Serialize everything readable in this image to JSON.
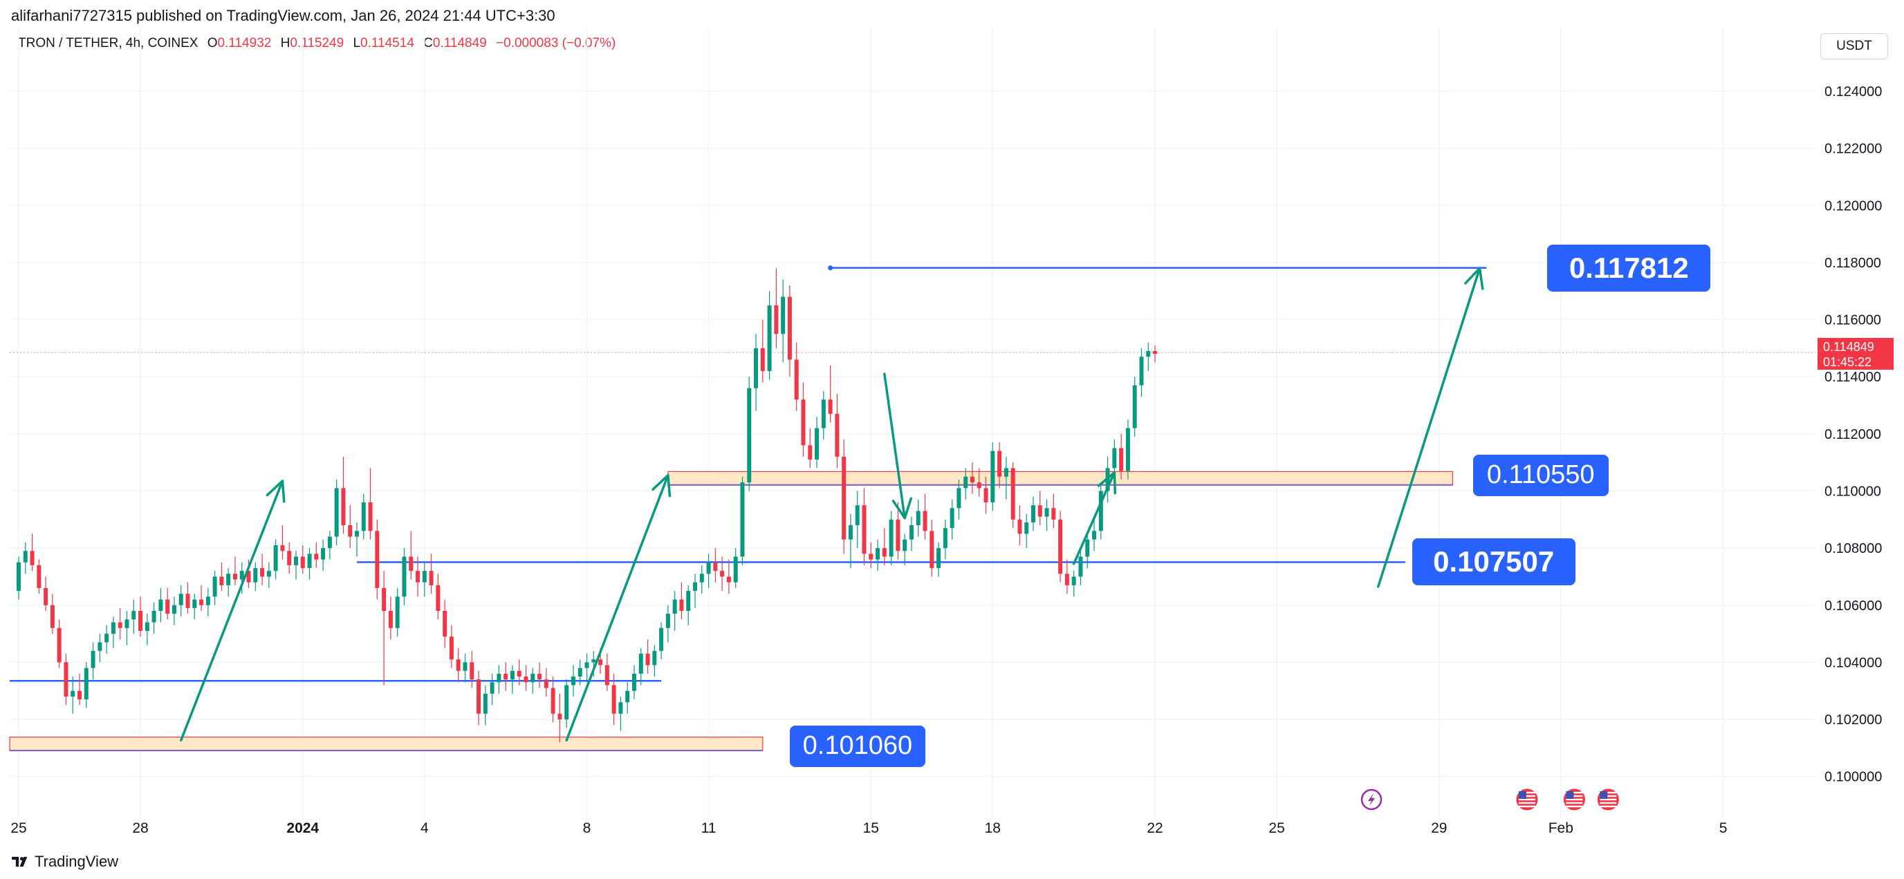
{
  "header": {
    "publisher_line": "alifarhani7727315 published on TradingView.com, Jan 26, 2024 21:44 UTC+3:30",
    "symbol": "TRON / TETHER, 4h, COINEX",
    "ohlc": {
      "o_label": "O",
      "o": "0.114932",
      "h_label": "H",
      "h": "0.115249",
      "l_label": "L",
      "l": "0.114514",
      "c_label": "C",
      "c": "0.114849",
      "change": "−0.000083 (−0.07%)"
    },
    "currency": "USDT"
  },
  "footer": {
    "brand": "TradingView"
  },
  "colors": {
    "up": "#089981",
    "down": "#f23645",
    "line": "#2962ff",
    "zone_fill": "#ffe0b2",
    "zone_border": "#f23645",
    "arrow": "#089981",
    "callout": "#2962ff"
  },
  "current_price": {
    "value": "0.114849",
    "countdown": "01:45:22"
  },
  "callouts": [
    {
      "label": "0.117812",
      "bold": true
    },
    {
      "label": "0.110550",
      "bold": false
    },
    {
      "label": "0.107507",
      "bold": true
    },
    {
      "label": "0.101060",
      "bold": false
    }
  ],
  "chart_data": {
    "type": "candlestick",
    "interval": "4h",
    "y_axis": {
      "range": [
        0.099,
        0.1255
      ],
      "ticks": [
        "0.100000",
        "0.102000",
        "0.104000",
        "0.106000",
        "0.108000",
        "0.110000",
        "0.112000",
        "0.114000",
        "0.116000",
        "0.118000",
        "0.120000",
        "0.122000",
        "0.124000"
      ]
    },
    "x_axis": {
      "ticks": [
        {
          "label": "25",
          "bar": 0
        },
        {
          "label": "28",
          "bar": 18
        },
        {
          "label": "2024",
          "bar": 42,
          "bold": true
        },
        {
          "label": "4",
          "bar": 60
        },
        {
          "label": "8",
          "bar": 84
        },
        {
          "label": "11",
          "bar": 102
        },
        {
          "label": "15",
          "bar": 126
        },
        {
          "label": "18",
          "bar": 144
        },
        {
          "label": "22",
          "bar": 168
        },
        {
          "label": "25",
          "bar": 186
        },
        {
          "label": "29",
          "bar": 210
        },
        {
          "label": "Feb",
          "bar": 228
        },
        {
          "label": "5",
          "bar": 252
        }
      ]
    },
    "candles": [
      [
        0.1065,
        0.1077,
        0.1062,
        0.1075
      ],
      [
        0.1075,
        0.1082,
        0.1071,
        0.1079
      ],
      [
        0.1079,
        0.1085,
        0.1072,
        0.1074
      ],
      [
        0.1074,
        0.1076,
        0.1064,
        0.1066
      ],
      [
        0.1066,
        0.107,
        0.1058,
        0.106
      ],
      [
        0.106,
        0.1064,
        0.105,
        0.1052
      ],
      [
        0.1052,
        0.1055,
        0.1038,
        0.104
      ],
      [
        0.104,
        0.1043,
        0.1025,
        0.1028
      ],
      [
        0.1028,
        0.1035,
        0.1022,
        0.103
      ],
      [
        0.103,
        0.1036,
        0.1025,
        0.1027
      ],
      [
        0.1027,
        0.104,
        0.1024,
        0.1038
      ],
      [
        0.1038,
        0.1047,
        0.1034,
        0.1044
      ],
      [
        0.1044,
        0.105,
        0.104,
        0.1047
      ],
      [
        0.1047,
        0.1053,
        0.1043,
        0.105
      ],
      [
        0.105,
        0.1056,
        0.1045,
        0.1054
      ],
      [
        0.1054,
        0.1059,
        0.1048,
        0.1052
      ],
      [
        0.1052,
        0.1058,
        0.1046,
        0.1055
      ],
      [
        0.1055,
        0.1062,
        0.105,
        0.1058
      ],
      [
        0.1058,
        0.1063,
        0.1049,
        0.1051
      ],
      [
        0.1051,
        0.1057,
        0.1046,
        0.1054
      ],
      [
        0.1054,
        0.1061,
        0.105,
        0.1058
      ],
      [
        0.1058,
        0.1066,
        0.1054,
        0.1062
      ],
      [
        0.1062,
        0.1066,
        0.1055,
        0.1057
      ],
      [
        0.1057,
        0.1063,
        0.1053,
        0.106
      ],
      [
        0.106,
        0.1067,
        0.1056,
        0.1064
      ],
      [
        0.1064,
        0.1068,
        0.1057,
        0.1059
      ],
      [
        0.1059,
        0.1064,
        0.1055,
        0.1062
      ],
      [
        0.1062,
        0.1067,
        0.1058,
        0.106
      ],
      [
        0.106,
        0.1066,
        0.1056,
        0.1063
      ],
      [
        0.1063,
        0.1072,
        0.106,
        0.107
      ],
      [
        0.107,
        0.1075,
        0.1065,
        0.1067
      ],
      [
        0.1067,
        0.1073,
        0.1063,
        0.1071
      ],
      [
        0.1071,
        0.1077,
        0.1067,
        0.1069
      ],
      [
        0.1069,
        0.1075,
        0.1064,
        0.1072
      ],
      [
        0.1072,
        0.1076,
        0.1066,
        0.1068
      ],
      [
        0.1068,
        0.1075,
        0.1065,
        0.1073
      ],
      [
        0.1073,
        0.1078,
        0.1067,
        0.107
      ],
      [
        0.107,
        0.1075,
        0.1066,
        0.1072
      ],
      [
        0.1072,
        0.1083,
        0.1069,
        0.1081
      ],
      [
        0.1081,
        0.1088,
        0.1076,
        0.1079
      ],
      [
        0.1079,
        0.1082,
        0.1071,
        0.1074
      ],
      [
        0.1074,
        0.1079,
        0.1069,
        0.1077
      ],
      [
        0.1077,
        0.1081,
        0.1071,
        0.1073
      ],
      [
        0.1073,
        0.108,
        0.1069,
        0.1078
      ],
      [
        0.1078,
        0.1082,
        0.1073,
        0.1076
      ],
      [
        0.1076,
        0.1083,
        0.1072,
        0.108
      ],
      [
        0.108,
        0.1086,
        0.1076,
        0.1084
      ],
      [
        0.1084,
        0.1104,
        0.1081,
        0.1101
      ],
      [
        0.1101,
        0.1112,
        0.1085,
        0.1088
      ],
      [
        0.1088,
        0.1095,
        0.108,
        0.1084
      ],
      [
        0.1084,
        0.1089,
        0.1077,
        0.1086
      ],
      [
        0.1086,
        0.1099,
        0.1083,
        0.1096
      ],
      [
        0.1096,
        0.1108,
        0.1083,
        0.1086
      ],
      [
        0.1086,
        0.109,
        0.1062,
        0.1066
      ],
      [
        0.1066,
        0.1072,
        0.1032,
        0.1058
      ],
      [
        0.1058,
        0.1063,
        0.1048,
        0.1052
      ],
      [
        0.1052,
        0.1066,
        0.1049,
        0.1063
      ],
      [
        0.1063,
        0.108,
        0.106,
        0.1077
      ],
      [
        0.1077,
        0.1086,
        0.1069,
        0.1072
      ],
      [
        0.1072,
        0.1077,
        0.1063,
        0.1068
      ],
      [
        0.1068,
        0.1075,
        0.1063,
        0.1072
      ],
      [
        0.1072,
        0.1078,
        0.1064,
        0.1067
      ],
      [
        0.1067,
        0.1071,
        0.1055,
        0.1058
      ],
      [
        0.1058,
        0.1062,
        0.1045,
        0.1049
      ],
      [
        0.1049,
        0.1053,
        0.1038,
        0.1041
      ],
      [
        0.1041,
        0.1045,
        0.1033,
        0.1037
      ],
      [
        0.1037,
        0.1043,
        0.1033,
        0.104
      ],
      [
        0.104,
        0.1044,
        0.1031,
        0.1034
      ],
      [
        0.1034,
        0.1037,
        0.1018,
        0.1022
      ],
      [
        0.1022,
        0.1032,
        0.1018,
        0.1029
      ],
      [
        0.1029,
        0.1036,
        0.1025,
        0.1033
      ],
      [
        0.1033,
        0.1039,
        0.1029,
        0.1036
      ],
      [
        0.1036,
        0.104,
        0.103,
        0.1034
      ],
      [
        0.1034,
        0.1039,
        0.1029,
        0.1037
      ],
      [
        0.1037,
        0.1041,
        0.1032,
        0.1035
      ],
      [
        0.1035,
        0.1039,
        0.103,
        0.1033
      ],
      [
        0.1033,
        0.1038,
        0.1029,
        0.1036
      ],
      [
        0.1036,
        0.104,
        0.1031,
        0.1034
      ],
      [
        0.1034,
        0.1038,
        0.1028,
        0.1031
      ],
      [
        0.1031,
        0.1035,
        0.1019,
        0.1022
      ],
      [
        0.1022,
        0.1029,
        0.1012,
        0.102
      ],
      [
        0.102,
        0.1034,
        0.1017,
        0.1032
      ],
      [
        0.1032,
        0.1039,
        0.1028,
        0.1035
      ],
      [
        0.1035,
        0.1041,
        0.1032,
        0.1038
      ],
      [
        0.1038,
        0.1043,
        0.1033,
        0.104
      ],
      [
        0.104,
        0.1044,
        0.1035,
        0.1041
      ],
      [
        0.1041,
        0.1045,
        0.1036,
        0.1039
      ],
      [
        0.1039,
        0.1043,
        0.103,
        0.1032
      ],
      [
        0.1032,
        0.1036,
        0.1018,
        0.1022
      ],
      [
        0.1022,
        0.1028,
        0.1016,
        0.1026
      ],
      [
        0.1026,
        0.1033,
        0.1022,
        0.103
      ],
      [
        0.103,
        0.1039,
        0.1027,
        0.1036
      ],
      [
        0.1036,
        0.1045,
        0.1032,
        0.1043
      ],
      [
        0.1043,
        0.1048,
        0.1036,
        0.1039
      ],
      [
        0.1039,
        0.1046,
        0.1035,
        0.1044
      ],
      [
        0.1044,
        0.1054,
        0.1041,
        0.1052
      ],
      [
        0.1052,
        0.106,
        0.1047,
        0.1057
      ],
      [
        0.1057,
        0.1065,
        0.1051,
        0.1062
      ],
      [
        0.1062,
        0.1068,
        0.1055,
        0.1058
      ],
      [
        0.1058,
        0.1067,
        0.1053,
        0.1065
      ],
      [
        0.1065,
        0.1071,
        0.1059,
        0.1068
      ],
      [
        0.1068,
        0.1074,
        0.1064,
        0.1071
      ],
      [
        0.1071,
        0.1078,
        0.1066,
        0.1075
      ],
      [
        0.1075,
        0.108,
        0.1068,
        0.1072
      ],
      [
        0.1072,
        0.1077,
        0.1065,
        0.107
      ],
      [
        0.107,
        0.1076,
        0.1064,
        0.1068
      ],
      [
        0.1068,
        0.108,
        0.1066,
        0.1077
      ],
      [
        0.1077,
        0.1105,
        0.1074,
        0.1103
      ],
      [
        0.1103,
        0.114,
        0.11,
        0.1136
      ],
      [
        0.1136,
        0.1155,
        0.1128,
        0.115
      ],
      [
        0.115,
        0.116,
        0.1138,
        0.1142
      ],
      [
        0.1142,
        0.117,
        0.1139,
        0.1165
      ],
      [
        0.1165,
        0.1178,
        0.115,
        0.1155
      ],
      [
        0.1155,
        0.1174,
        0.1145,
        0.1168
      ],
      [
        0.1168,
        0.1172,
        0.114,
        0.1146
      ],
      [
        0.1146,
        0.1152,
        0.1128,
        0.1132
      ],
      [
        0.1132,
        0.1138,
        0.1112,
        0.1116
      ],
      [
        0.1116,
        0.1122,
        0.1108,
        0.1111
      ],
      [
        0.1111,
        0.1126,
        0.1108,
        0.1122
      ],
      [
        0.1122,
        0.1135,
        0.1118,
        0.1132
      ],
      [
        0.1132,
        0.1144,
        0.1124,
        0.1127
      ],
      [
        0.1127,
        0.1134,
        0.1108,
        0.1112
      ],
      [
        0.1112,
        0.1118,
        0.1078,
        0.1083
      ],
      [
        0.1083,
        0.1092,
        0.1073,
        0.1088
      ],
      [
        0.1088,
        0.11,
        0.108,
        0.1095
      ],
      [
        0.1095,
        0.1101,
        0.1074,
        0.1078
      ],
      [
        0.1078,
        0.1082,
        0.1073,
        0.1076
      ],
      [
        0.1076,
        0.1083,
        0.1072,
        0.108
      ],
      [
        0.108,
        0.1087,
        0.1074,
        0.1077
      ],
      [
        0.1077,
        0.1093,
        0.1074,
        0.109
      ],
      [
        0.109,
        0.1096,
        0.1076,
        0.1079
      ],
      [
        0.1079,
        0.1085,
        0.1074,
        0.1083
      ],
      [
        0.1083,
        0.1091,
        0.1079,
        0.1088
      ],
      [
        0.1088,
        0.1097,
        0.1084,
        0.1093
      ],
      [
        0.1093,
        0.1099,
        0.1083,
        0.1086
      ],
      [
        0.1086,
        0.109,
        0.107,
        0.1073
      ],
      [
        0.1073,
        0.1082,
        0.107,
        0.108
      ],
      [
        0.108,
        0.109,
        0.1076,
        0.1087
      ],
      [
        0.1087,
        0.1097,
        0.1083,
        0.1094
      ],
      [
        0.1094,
        0.1104,
        0.109,
        0.1101
      ],
      [
        0.1101,
        0.1108,
        0.1097,
        0.1105
      ],
      [
        0.1105,
        0.111,
        0.1099,
        0.1103
      ],
      [
        0.1103,
        0.1108,
        0.1098,
        0.1101
      ],
      [
        0.1101,
        0.1105,
        0.1092,
        0.1096
      ],
      [
        0.1096,
        0.1117,
        0.1093,
        0.1114
      ],
      [
        0.1114,
        0.1117,
        0.1101,
        0.1105
      ],
      [
        0.1105,
        0.1112,
        0.1097,
        0.1108
      ],
      [
        0.1108,
        0.111,
        0.1087,
        0.109
      ],
      [
        0.109,
        0.1095,
        0.1081,
        0.1085
      ],
      [
        0.1085,
        0.1092,
        0.108,
        0.1089
      ],
      [
        0.1089,
        0.1098,
        0.1086,
        0.1095
      ],
      [
        0.1095,
        0.11,
        0.1088,
        0.1091
      ],
      [
        0.1091,
        0.1097,
        0.1086,
        0.1094
      ],
      [
        0.1094,
        0.1099,
        0.1087,
        0.109
      ],
      [
        0.109,
        0.1093,
        0.1068,
        0.1071
      ],
      [
        0.1071,
        0.1076,
        0.1064,
        0.1067
      ],
      [
        0.1067,
        0.1072,
        0.1063,
        0.107
      ],
      [
        0.107,
        0.1079,
        0.1067,
        0.1077
      ],
      [
        0.1077,
        0.1086,
        0.1073,
        0.1083
      ],
      [
        0.1083,
        0.109,
        0.1079,
        0.1086
      ],
      [
        0.1086,
        0.1102,
        0.1083,
        0.11
      ],
      [
        0.11,
        0.1112,
        0.1096,
        0.1108
      ],
      [
        0.1108,
        0.1118,
        0.1103,
        0.1115
      ],
      [
        0.1115,
        0.112,
        0.1104,
        0.1107
      ],
      [
        0.1107,
        0.1125,
        0.1104,
        0.1122
      ],
      [
        0.1122,
        0.114,
        0.1119,
        0.1137
      ],
      [
        0.1137,
        0.115,
        0.1133,
        0.1147
      ],
      [
        0.1147,
        0.1152,
        0.1142,
        0.1149
      ],
      [
        0.1149,
        0.1151,
        0.1145,
        0.1148
      ]
    ],
    "horizontal_lines": [
      {
        "price": 0.117812,
        "from_bar": 120,
        "to_bar": 217
      },
      {
        "price": 0.10335,
        "from_bar": -1,
        "to_bar": 95,
        "comment": "upper-left blue"
      },
      {
        "price": 0.107507,
        "from_bar": 50,
        "to_bar": 205
      }
    ],
    "zones": [
      {
        "top": 0.11068,
        "bottom": 0.11021,
        "from_bar": 96,
        "to_bar": 212
      },
      {
        "top": 0.10138,
        "bottom": 0.10091,
        "from_bar": -1,
        "to_bar": 110
      }
    ],
    "arrows": [
      {
        "from": [
          24,
          0.10127
        ],
        "to": [
          39,
          0.11035
        ]
      },
      {
        "from": [
          81,
          0.10127
        ],
        "to": [
          96,
          0.11055
        ]
      },
      {
        "from": [
          128,
          0.1141
        ],
        "to": [
          131,
          0.10905
        ]
      },
      {
        "from": [
          156,
          0.10745
        ],
        "to": [
          162,
          0.11065
        ]
      },
      {
        "from": [
          201,
          0.10665
        ],
        "to": [
          216,
          0.1178
        ]
      }
    ],
    "callout_anchors": [
      {
        "callout": 0,
        "bar": 226,
        "price": 0.117812
      },
      {
        "callout": 1,
        "bar": 215,
        "price": 0.11055
      },
      {
        "callout": 2,
        "bar": 206,
        "price": 0.107507
      },
      {
        "callout": 3,
        "bar": 114,
        "price": 0.10106
      }
    ],
    "event_markers": [
      {
        "type": "lightning",
        "bar": 200
      },
      {
        "type": "us-flag",
        "bar": 223
      },
      {
        "type": "us-flag",
        "bar": 230
      },
      {
        "type": "us-flag",
        "bar": 235
      }
    ]
  }
}
